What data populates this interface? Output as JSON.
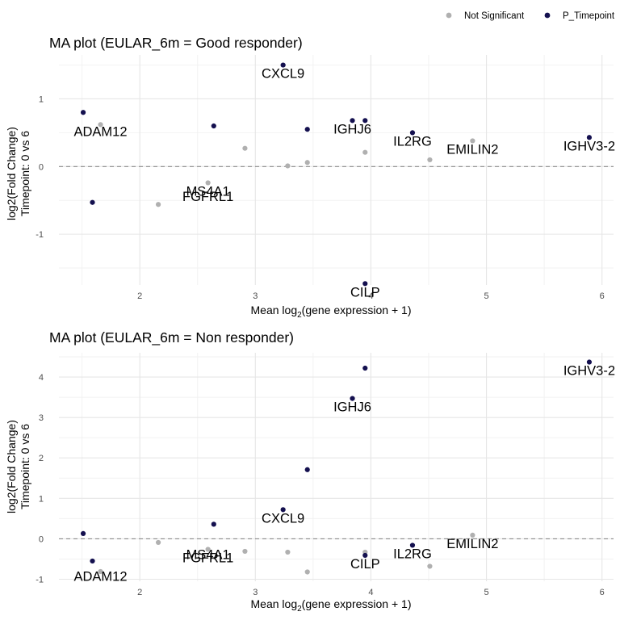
{
  "legend": {
    "items": [
      {
        "label": "Not Significant",
        "color": "#b0b0b0"
      },
      {
        "label": "P_Timepoint",
        "color": "#14104f"
      }
    ]
  },
  "chart_data": [
    {
      "type": "scatter",
      "title": "MA plot (EULAR_6m = Good responder)",
      "xlabel_main": "Mean log",
      "xlabel_sub": "2",
      "xlabel_rest": "(gene expression + 1)",
      "ylabel_line1": "log2(Fold Change)",
      "ylabel_line2": "Timepoint: 0 vs 6",
      "xlim": [
        1.3,
        6.1
      ],
      "ylim": [
        -1.75,
        1.65
      ],
      "x_ticks": [
        2,
        3,
        4,
        5,
        6
      ],
      "y_ticks": [
        -1,
        0,
        1
      ],
      "reference_line": 0,
      "grid": true,
      "series": [
        {
          "name": "Not Significant",
          "color": "#b0b0b0",
          "points": [
            {
              "x": 1.66,
              "y": 0.62
            },
            {
              "x": 2.16,
              "y": -0.56
            },
            {
              "x": 2.59,
              "y": -0.24
            },
            {
              "x": 2.91,
              "y": 0.27
            },
            {
              "x": 3.28,
              "y": 0.01
            },
            {
              "x": 3.45,
              "y": 0.06
            },
            {
              "x": 3.95,
              "y": 0.21
            },
            {
              "x": 4.51,
              "y": 0.1
            },
            {
              "x": 4.88,
              "y": 0.38
            }
          ]
        },
        {
          "name": "P_Timepoint",
          "color": "#14104f",
          "points": [
            {
              "x": 1.51,
              "y": 0.8
            },
            {
              "x": 1.59,
              "y": -0.53
            },
            {
              "x": 2.64,
              "y": 0.6
            },
            {
              "x": 3.24,
              "y": 1.5
            },
            {
              "x": 3.45,
              "y": 0.55
            },
            {
              "x": 3.84,
              "y": 0.68
            },
            {
              "x": 3.95,
              "y": 0.68
            },
            {
              "x": 3.95,
              "y": -1.73
            },
            {
              "x": 4.36,
              "y": 0.5
            },
            {
              "x": 5.89,
              "y": 0.43
            }
          ]
        }
      ],
      "annotations": [
        {
          "text": "ADAM12",
          "x": 1.66,
          "y": 0.52
        },
        {
          "text": "CXCL9",
          "x": 3.24,
          "y": 1.38
        },
        {
          "text": "IGHJ6",
          "x": 3.84,
          "y": 0.56
        },
        {
          "text": "IL2RG",
          "x": 4.36,
          "y": 0.38
        },
        {
          "text": "EMILIN2",
          "x": 4.88,
          "y": 0.26
        },
        {
          "text": "IGHV3-2",
          "x": 5.89,
          "y": 0.31
        },
        {
          "text": "MS4A1",
          "x": 2.59,
          "y": -0.36
        },
        {
          "text": "FGFRL1",
          "x": 2.59,
          "y": -0.44
        },
        {
          "text": "CILP",
          "x": 3.95,
          "y": -1.85
        }
      ]
    },
    {
      "type": "scatter",
      "title": "MA plot (EULAR_6m = Non responder)",
      "xlabel_main": "Mean log",
      "xlabel_sub": "2",
      "xlabel_rest": "(gene expression + 1)",
      "ylabel_line1": "log2(Fold Change)",
      "ylabel_line2": "Timepoint: 0 vs 6",
      "xlim": [
        1.3,
        6.1
      ],
      "ylim": [
        -1.05,
        4.6
      ],
      "x_ticks": [
        2,
        3,
        4,
        5,
        6
      ],
      "y_ticks": [
        -1,
        0,
        1,
        2,
        3,
        4
      ],
      "reference_line": 0,
      "grid": true,
      "series": [
        {
          "name": "Not Significant",
          "color": "#b0b0b0",
          "points": [
            {
              "x": 1.66,
              "y": -0.81
            },
            {
              "x": 2.16,
              "y": -0.09
            },
            {
              "x": 2.59,
              "y": -0.26
            },
            {
              "x": 2.91,
              "y": -0.31
            },
            {
              "x": 3.28,
              "y": -0.33
            },
            {
              "x": 3.45,
              "y": -0.82
            },
            {
              "x": 3.95,
              "y": -0.33
            },
            {
              "x": 4.51,
              "y": -0.68
            },
            {
              "x": 4.88,
              "y": 0.09
            }
          ]
        },
        {
          "name": "P_Timepoint",
          "color": "#14104f",
          "points": [
            {
              "x": 1.51,
              "y": 0.13
            },
            {
              "x": 1.59,
              "y": -0.55
            },
            {
              "x": 2.64,
              "y": 0.36
            },
            {
              "x": 3.24,
              "y": 0.72
            },
            {
              "x": 3.45,
              "y": 1.71
            },
            {
              "x": 3.84,
              "y": 3.47
            },
            {
              "x": 3.95,
              "y": 4.22
            },
            {
              "x": 3.95,
              "y": -0.41
            },
            {
              "x": 4.36,
              "y": -0.16
            },
            {
              "x": 5.89,
              "y": 4.37
            }
          ]
        }
      ],
      "annotations": [
        {
          "text": "ADAM12",
          "x": 1.66,
          "y": -0.92
        },
        {
          "text": "CXCL9",
          "x": 3.24,
          "y": 0.52
        },
        {
          "text": "IGHJ6",
          "x": 3.84,
          "y": 3.27
        },
        {
          "text": "IL2RG",
          "x": 4.36,
          "y": -0.36
        },
        {
          "text": "EMILIN2",
          "x": 4.88,
          "y": -0.11
        },
        {
          "text": "IGHV3-2",
          "x": 5.89,
          "y": 4.17
        },
        {
          "text": "MS4A1",
          "x": 2.59,
          "y": -0.38
        },
        {
          "text": "FGFRL1",
          "x": 2.59,
          "y": -0.46
        },
        {
          "text": "CILP",
          "x": 3.95,
          "y": -0.61
        }
      ]
    }
  ]
}
